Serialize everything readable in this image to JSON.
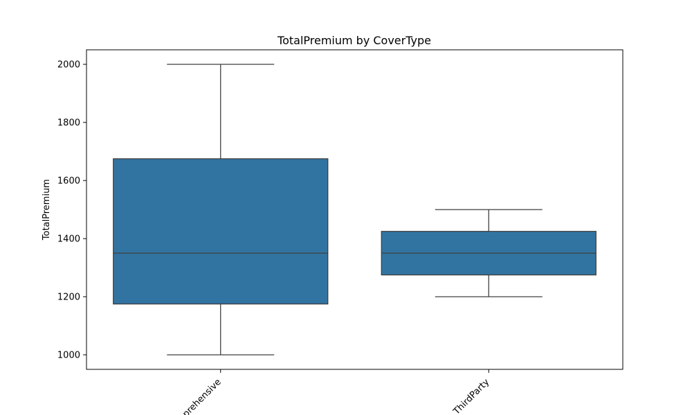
{
  "chart_data": {
    "type": "box",
    "title": "TotalPremium by CoverType",
    "xlabel": "",
    "ylabel": "TotalPremium",
    "ylim": [
      950,
      2050
    ],
    "yticks": [
      1000,
      1200,
      1400,
      1600,
      1800,
      2000
    ],
    "grid": false,
    "categories": [
      "Comprehensive",
      "ThirdParty"
    ],
    "boxes": [
      {
        "category": "Comprehensive",
        "whisker_low": 1000,
        "q1": 1175,
        "median": 1350,
        "q3": 1675,
        "whisker_high": 2000
      },
      {
        "category": "ThirdParty",
        "whisker_low": 1200,
        "q1": 1275,
        "median": 1350,
        "q3": 1425,
        "whisker_high": 1500
      }
    ],
    "colors": {
      "box_fill": "#3274a1",
      "line": "#3f3f3f",
      "axes": "#000000"
    }
  }
}
